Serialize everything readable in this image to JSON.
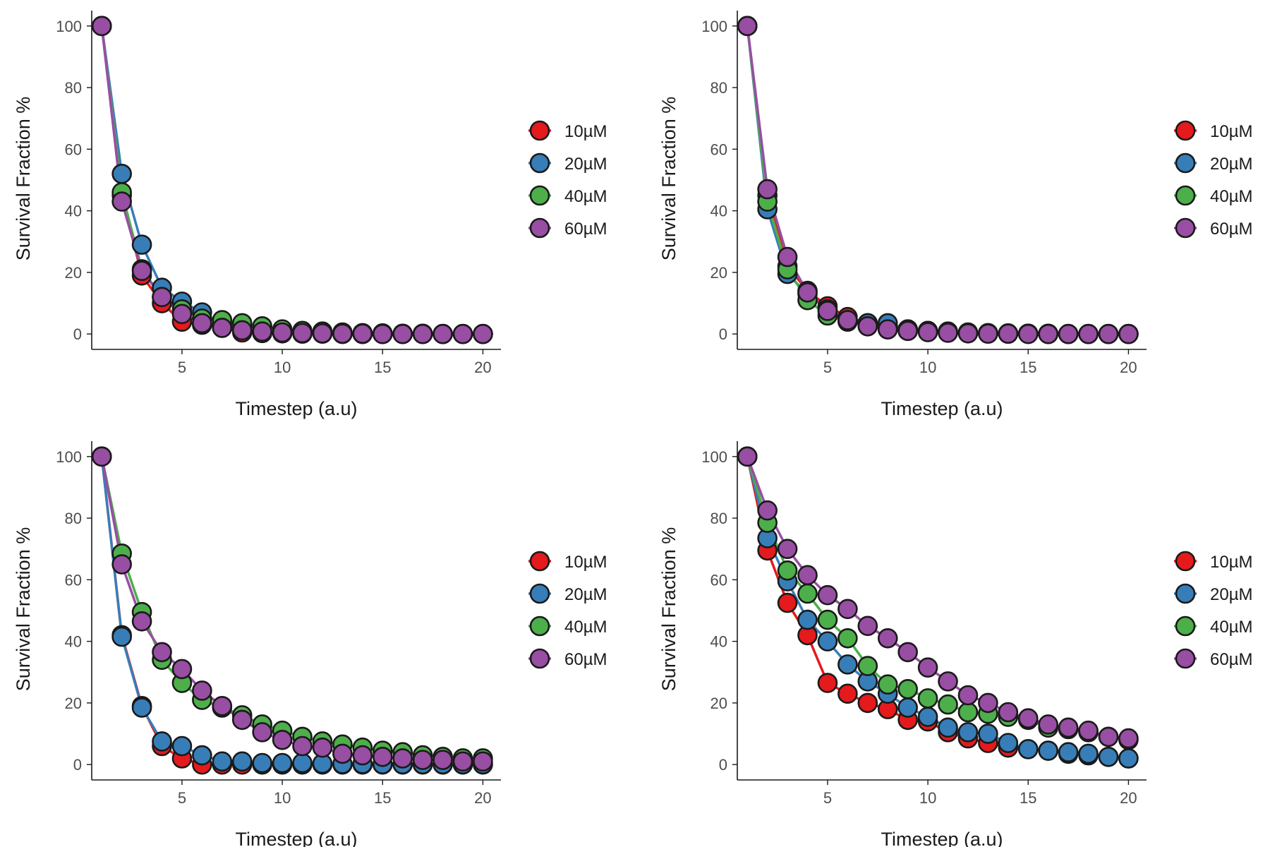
{
  "chart_data": [
    {
      "type": "line",
      "panel": "top-left",
      "xlabel": "Timestep (a.u)",
      "ylabel": "Survival Fraction %",
      "xlim": [
        0.5,
        20.9
      ],
      "ylim": [
        -5,
        105
      ],
      "xticks": [
        5,
        10,
        15,
        20
      ],
      "yticks": [
        0,
        20,
        40,
        60,
        80,
        100
      ],
      "legend_position": "right",
      "x": [
        1,
        2,
        3,
        4,
        5,
        6,
        7,
        8,
        9,
        10,
        11,
        12,
        13,
        14,
        15,
        16,
        17,
        18,
        19,
        20
      ],
      "series": [
        {
          "name": "10µM",
          "color": "#e41a1c",
          "values": [
            100,
            45,
            19,
            10,
            4,
            3,
            2,
            0.5,
            0.3,
            0.2,
            0.1,
            0.1,
            0,
            0,
            0,
            0,
            0,
            0,
            0,
            0
          ]
        },
        {
          "name": "20µM",
          "color": "#377eb8",
          "values": [
            100,
            52,
            29,
            15,
            10.5,
            7,
            3,
            2,
            0.5,
            0.5,
            0.3,
            0.2,
            0.1,
            0,
            0,
            0,
            0,
            0,
            0,
            0
          ]
        },
        {
          "name": "40µM",
          "color": "#4daf4a",
          "values": [
            100,
            46,
            21,
            12,
            8,
            5,
            4.5,
            3.5,
            2.5,
            1.5,
            1,
            0.8,
            0.5,
            0.3,
            0.2,
            0.1,
            0.1,
            0,
            0,
            0
          ]
        },
        {
          "name": "60µM",
          "color": "#984ea3",
          "values": [
            100,
            43,
            20.5,
            12,
            6.5,
            3.5,
            2,
            1.2,
            0.8,
            0.5,
            0.3,
            0.2,
            0.1,
            0.1,
            0,
            0,
            0,
            0,
            0,
            0
          ]
        }
      ]
    },
    {
      "type": "line",
      "panel": "top-right",
      "xlabel": "Timestep (a.u)",
      "ylabel": "Survival Fraction %",
      "xlim": [
        0.5,
        20.9
      ],
      "ylim": [
        -5,
        105
      ],
      "xticks": [
        5,
        10,
        15,
        20
      ],
      "yticks": [
        0,
        20,
        40,
        60,
        80,
        100
      ],
      "legend_position": "right",
      "x": [
        1,
        2,
        3,
        4,
        5,
        6,
        7,
        8,
        9,
        10,
        11,
        12,
        13,
        14,
        15,
        16,
        17,
        18,
        19,
        20
      ],
      "series": [
        {
          "name": "10µM",
          "color": "#e41a1c",
          "values": [
            100,
            45,
            22,
            14,
            9,
            5.5,
            3.5,
            2,
            1.5,
            1,
            0.8,
            0.5,
            0.3,
            0.2,
            0.1,
            0.1,
            0,
            0,
            0,
            0
          ]
        },
        {
          "name": "20µM",
          "color": "#377eb8",
          "values": [
            100,
            40.5,
            19.5,
            13,
            8,
            4.5,
            3.5,
            3.5,
            1.5,
            1,
            0.5,
            0.3,
            0.2,
            0.1,
            0.1,
            0,
            0,
            0,
            0,
            0
          ]
        },
        {
          "name": "40µM",
          "color": "#4daf4a",
          "values": [
            100,
            43,
            21,
            11,
            6,
            4,
            2.5,
            1.5,
            1,
            0.8,
            0.5,
            0.3,
            0.2,
            0.1,
            0.1,
            0,
            0,
            0,
            0,
            0
          ]
        },
        {
          "name": "60µM",
          "color": "#984ea3",
          "values": [
            100,
            47,
            25,
            13.5,
            7.5,
            4.5,
            2.5,
            1.5,
            1,
            0.6,
            0.4,
            0.2,
            0.1,
            0.1,
            0,
            0,
            0,
            0,
            0,
            0
          ]
        }
      ]
    },
    {
      "type": "line",
      "panel": "bottom-left",
      "xlabel": "Timestep (a.u)",
      "ylabel": "Survival Fraction %",
      "xlim": [
        0.5,
        20.9
      ],
      "ylim": [
        -5,
        105
      ],
      "xticks": [
        5,
        10,
        15,
        20
      ],
      "yticks": [
        0,
        20,
        40,
        60,
        80,
        100
      ],
      "legend_position": "right",
      "x": [
        1,
        2,
        3,
        4,
        5,
        6,
        7,
        8,
        9,
        10,
        11,
        12,
        13,
        14,
        15,
        16,
        17,
        18,
        19,
        20
      ],
      "series": [
        {
          "name": "10µM",
          "color": "#e41a1c",
          "values": [
            100,
            42,
            19,
            6,
            2,
            0,
            0,
            0,
            0,
            0,
            0,
            0,
            0,
            0,
            0,
            0,
            0,
            0,
            0,
            0
          ]
        },
        {
          "name": "20µM",
          "color": "#377eb8",
          "values": [
            100,
            41.5,
            18.5,
            7.5,
            6,
            3,
            1,
            1,
            0.5,
            0.5,
            0.5,
            0.3,
            0.2,
            0.2,
            0.1,
            0.1,
            0.1,
            0.1,
            0.1,
            0.1
          ]
        },
        {
          "name": "40µM",
          "color": "#4daf4a",
          "values": [
            100,
            68.5,
            49.5,
            34,
            26.5,
            21,
            18.5,
            16,
            13,
            11,
            9,
            7.5,
            6.5,
            5.5,
            4.5,
            4,
            3,
            2.5,
            2,
            2
          ]
        },
        {
          "name": "60µM",
          "color": "#984ea3",
          "values": [
            100,
            65,
            46.5,
            36.5,
            31,
            24,
            19,
            14.5,
            10.5,
            8,
            6,
            5.5,
            3.5,
            3,
            2.5,
            2,
            1.5,
            1.5,
            1,
            1
          ]
        }
      ]
    },
    {
      "type": "line",
      "panel": "bottom-right",
      "xlabel": "Timestep (a.u)",
      "ylabel": "Survival Fraction %",
      "xlim": [
        0.5,
        20.9
      ],
      "ylim": [
        -5,
        105
      ],
      "xticks": [
        5,
        10,
        15,
        20
      ],
      "yticks": [
        0,
        20,
        40,
        60,
        80,
        100
      ],
      "legend_position": "right",
      "x": [
        1,
        2,
        3,
        4,
        5,
        6,
        7,
        8,
        9,
        10,
        11,
        12,
        13,
        14,
        15,
        16,
        17,
        18,
        19,
        20
      ],
      "series": [
        {
          "name": "10µM",
          "color": "#e41a1c",
          "values": [
            100,
            69.5,
            52.5,
            42,
            26.5,
            23,
            20,
            18,
            14.5,
            14,
            10.5,
            8.5,
            7,
            5.5,
            5,
            4.5,
            3.5,
            3,
            2.5,
            2
          ]
        },
        {
          "name": "20µM",
          "color": "#377eb8",
          "values": [
            100,
            73.5,
            59.5,
            47,
            40,
            32.5,
            27,
            23,
            18.5,
            15.5,
            12,
            10.5,
            10,
            7,
            5,
            4.5,
            4,
            3.5,
            2.5,
            2
          ]
        },
        {
          "name": "40µM",
          "color": "#4daf4a",
          "values": [
            100,
            78.5,
            63,
            55.5,
            47,
            41,
            32,
            26,
            24.5,
            21.5,
            19.5,
            17,
            16.5,
            15.5,
            14.5,
            12,
            11.5,
            10.5,
            9,
            8
          ]
        },
        {
          "name": "60µM",
          "color": "#984ea3",
          "values": [
            100,
            82.5,
            70,
            61.5,
            55,
            50.5,
            45,
            41,
            36.5,
            31.5,
            27,
            22.5,
            20,
            17,
            15,
            13,
            12,
            11,
            9,
            8.5
          ]
        }
      ]
    }
  ]
}
